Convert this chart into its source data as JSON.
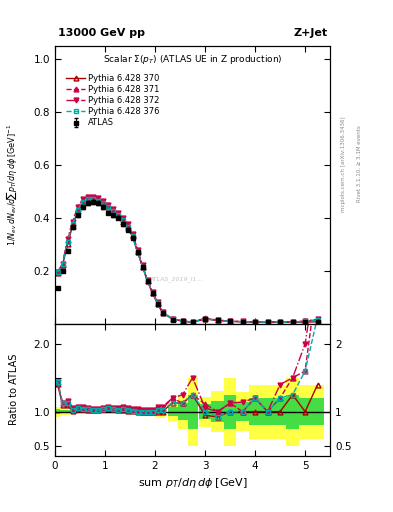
{
  "title_top": "13000 GeV pp",
  "title_right": "Z+Jet",
  "plot_title": "Scalar Σ(p_T) (ATLAS UE in Z production)",
  "xlabel": "sum p_T/dη dϕ [GeV]",
  "ylabel_main": "1/N_{ev} dN_{ev}/dsum p_T/dη dϕ  [GeV]^{-1}",
  "ylabel_ratio": "Ratio to ATLAS",
  "right_label_main": "mcplots.cern.ch [arXiv:1306.3436]",
  "right_label_rivet": "Rivet 3.1.10, ≥ 3.1M events",
  "watermark": "ATLAS_2019_I1...",
  "xlim": [
    0,
    5.5
  ],
  "ylim_main": [
    0,
    1.05
  ],
  "ylim_ratio": [
    0.35,
    2.3
  ],
  "yticks_main": [
    0.2,
    0.4,
    0.6,
    0.8,
    1.0
  ],
  "yticks_ratio": [
    0.5,
    1.0,
    1.5,
    2.0
  ],
  "xticks": [
    0,
    1,
    2,
    3,
    4,
    5
  ],
  "atlas_x": [
    0.05,
    0.15,
    0.25,
    0.35,
    0.45,
    0.55,
    0.65,
    0.75,
    0.85,
    0.95,
    1.05,
    1.15,
    1.25,
    1.35,
    1.45,
    1.55,
    1.65,
    1.75,
    1.85,
    1.95,
    2.05,
    2.15,
    2.35,
    2.55,
    2.75,
    3.0,
    3.25,
    3.5,
    3.75,
    4.0,
    4.25,
    4.5,
    4.75,
    5.0,
    5.25
  ],
  "atlas_y": [
    0.135,
    0.2,
    0.275,
    0.365,
    0.41,
    0.44,
    0.455,
    0.46,
    0.455,
    0.44,
    0.42,
    0.41,
    0.4,
    0.375,
    0.355,
    0.325,
    0.27,
    0.215,
    0.16,
    0.115,
    0.075,
    0.04,
    0.015,
    0.008,
    0.004,
    0.018,
    0.013,
    0.008,
    0.007,
    0.005,
    0.005,
    0.005,
    0.004,
    0.005,
    0.005
  ],
  "atlas_yerr": [
    0.005,
    0.005,
    0.006,
    0.007,
    0.007,
    0.007,
    0.007,
    0.007,
    0.007,
    0.007,
    0.007,
    0.006,
    0.006,
    0.006,
    0.006,
    0.005,
    0.005,
    0.004,
    0.004,
    0.003,
    0.003,
    0.002,
    0.001,
    0.001,
    0.001,
    0.002,
    0.002,
    0.002,
    0.001,
    0.001,
    0.001,
    0.001,
    0.001,
    0.001,
    0.001
  ],
  "atlas_xw": [
    0.1,
    0.1,
    0.1,
    0.1,
    0.1,
    0.1,
    0.1,
    0.1,
    0.1,
    0.1,
    0.1,
    0.1,
    0.1,
    0.1,
    0.1,
    0.1,
    0.1,
    0.1,
    0.1,
    0.1,
    0.1,
    0.1,
    0.2,
    0.2,
    0.2,
    0.25,
    0.25,
    0.25,
    0.25,
    0.25,
    0.25,
    0.25,
    0.25,
    0.25,
    0.25
  ],
  "p370_y": [
    0.19,
    0.22,
    0.3,
    0.37,
    0.425,
    0.455,
    0.465,
    0.47,
    0.465,
    0.455,
    0.44,
    0.425,
    0.41,
    0.385,
    0.36,
    0.33,
    0.27,
    0.215,
    0.16,
    0.115,
    0.075,
    0.04,
    0.017,
    0.009,
    0.005,
    0.017,
    0.012,
    0.008,
    0.007,
    0.005,
    0.005,
    0.005,
    0.005,
    0.005,
    0.007
  ],
  "p371_y": [
    0.195,
    0.225,
    0.315,
    0.38,
    0.435,
    0.465,
    0.475,
    0.475,
    0.47,
    0.46,
    0.445,
    0.43,
    0.415,
    0.395,
    0.37,
    0.335,
    0.275,
    0.215,
    0.16,
    0.115,
    0.078,
    0.042,
    0.018,
    0.009,
    0.005,
    0.02,
    0.013,
    0.009,
    0.007,
    0.006,
    0.005,
    0.006,
    0.006,
    0.008,
    0.015
  ],
  "p372_y": [
    0.195,
    0.225,
    0.32,
    0.385,
    0.44,
    0.47,
    0.48,
    0.48,
    0.475,
    0.465,
    0.45,
    0.435,
    0.42,
    0.4,
    0.375,
    0.34,
    0.28,
    0.22,
    0.165,
    0.118,
    0.08,
    0.043,
    0.018,
    0.01,
    0.006,
    0.019,
    0.013,
    0.009,
    0.008,
    0.006,
    0.005,
    0.007,
    0.006,
    0.01,
    0.016
  ],
  "p376_y": [
    0.195,
    0.225,
    0.31,
    0.375,
    0.43,
    0.46,
    0.47,
    0.47,
    0.465,
    0.455,
    0.44,
    0.425,
    0.41,
    0.39,
    0.365,
    0.33,
    0.27,
    0.215,
    0.16,
    0.115,
    0.077,
    0.041,
    0.017,
    0.009,
    0.005,
    0.018,
    0.012,
    0.008,
    0.007,
    0.006,
    0.005,
    0.006,
    0.005,
    0.008,
    0.012
  ],
  "color_370": "#aa0000",
  "color_371": "#cc0044",
  "color_372": "#cc0044",
  "color_376": "#00aaaa",
  "bg_color": "#ffffff"
}
